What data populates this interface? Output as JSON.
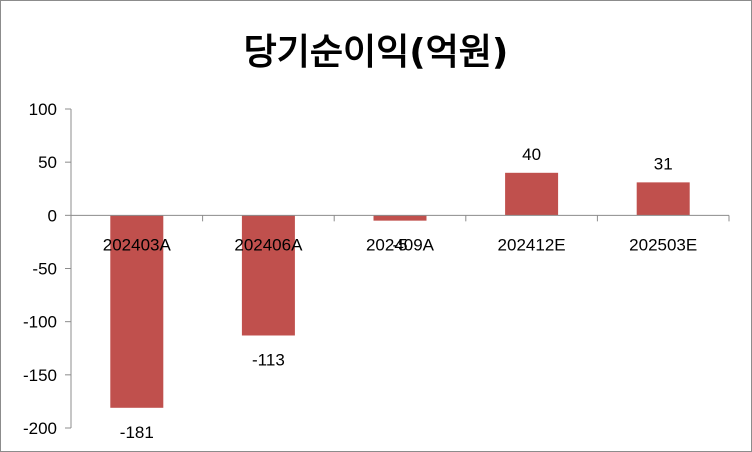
{
  "chart_data": {
    "type": "bar",
    "title": "당기순이익(억원)",
    "categories": [
      "202403A",
      "202406A",
      "202409A",
      "202412E",
      "202503E"
    ],
    "values": [
      -181,
      -113,
      -5,
      40,
      31
    ],
    "data_labels": [
      "-181",
      "-113",
      "-5",
      "40",
      "31"
    ],
    "ylim": [
      -200,
      100
    ],
    "yticks": [
      100,
      50,
      0,
      -50,
      -100,
      -150,
      -200
    ],
    "ytick_labels": [
      "100",
      "50",
      "0",
      "-50",
      "-100",
      "-150",
      "-200"
    ],
    "bar_color": "#c0504d",
    "grid": false,
    "legend": "none",
    "xlabel": "",
    "ylabel": ""
  }
}
